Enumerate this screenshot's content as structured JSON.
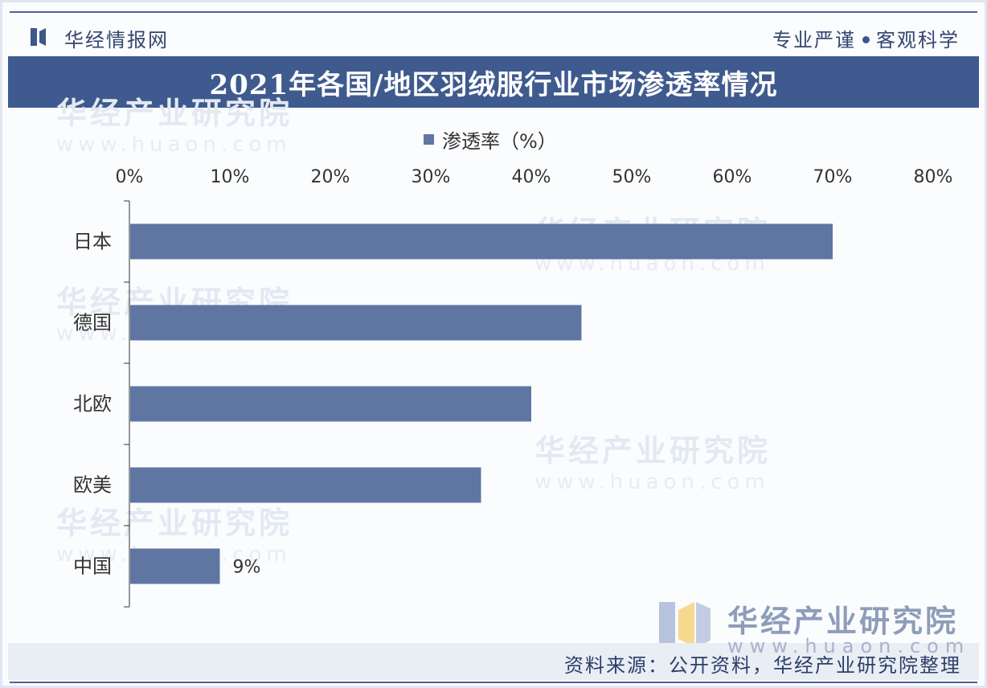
{
  "header": {
    "brand": "华经情报网",
    "slogan_left": "专业严谨",
    "slogan_right": "客观科学"
  },
  "title": "2021年各国/地区羽绒服行业市场渗透率情况",
  "watermark": {
    "brand": "华经产业研究院",
    "url": "www.huaon.com"
  },
  "footer": {
    "brand": "华经产业研究院",
    "url": "www.huaon.com",
    "source": "资料来源：公开资料，华经产业研究院整理"
  },
  "colors": {
    "bar": "#5f76a3",
    "title_band": "#3f5a8e",
    "logo_blue": "#3d578c",
    "logo_yellow": "#f3d27a"
  },
  "chart_data": {
    "type": "bar",
    "orientation": "horizontal",
    "categories": [
      "日本",
      "德国",
      "北欧",
      "欧美",
      "中国"
    ],
    "series": [
      {
        "name": "渗透率（%）",
        "values": [
          70,
          45,
          40,
          35,
          9
        ]
      }
    ],
    "xlim": [
      0,
      80
    ],
    "x_ticks": [
      "0%",
      "10%",
      "20%",
      "30%",
      "40%",
      "50%",
      "60%",
      "70%",
      "80%"
    ],
    "x_axis_position": "top",
    "data_labels": {
      "中国": "9%"
    },
    "legend": "top-center",
    "grid": false
  }
}
